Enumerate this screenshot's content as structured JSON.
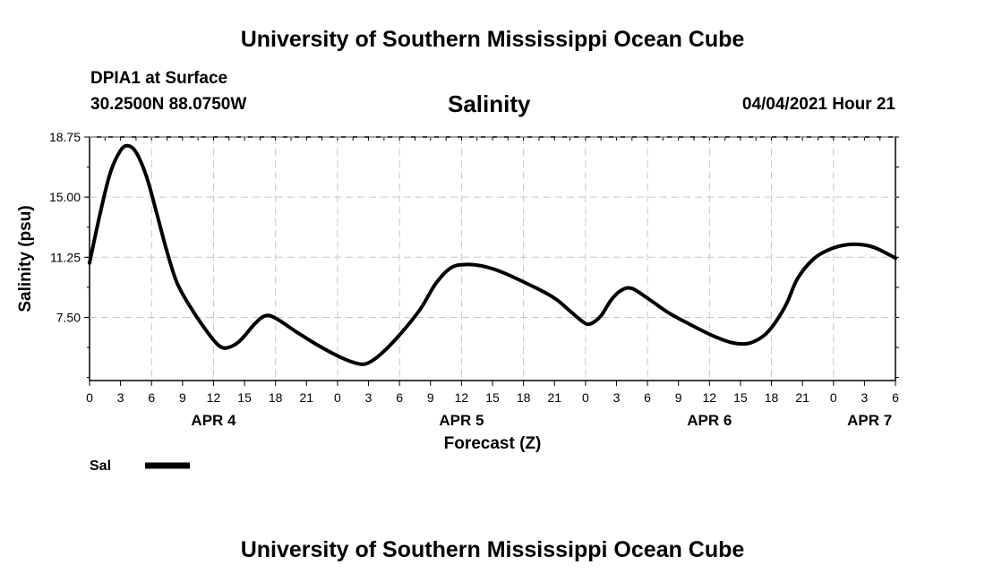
{
  "page": {
    "title_top": "University of Southern Mississippi Ocean Cube",
    "title_bottom": "University of Southern Mississippi Ocean Cube",
    "station": "DPIA1 at Surface",
    "coords": "30.2500N  88.0750W",
    "chart_title": "Salinity",
    "datetime": "04/04/2021 Hour 21"
  },
  "chart_data": {
    "type": "line",
    "title": "Salinity",
    "xlabel": "Forecast (Z)",
    "ylabel": "Salinity (psu)",
    "ylim": [
      3.56,
      18.75
    ],
    "yticks": [
      7.5,
      11.25,
      15.0,
      18.75
    ],
    "ytick_labels": [
      "7.50",
      "11.25",
      "15.00",
      "18.75"
    ],
    "xlim_hours": [
      0,
      78
    ],
    "xtick_hours": [
      0,
      3,
      6,
      9,
      12,
      15,
      18,
      21,
      24,
      27,
      30,
      33,
      36,
      39,
      42,
      45,
      48,
      51,
      54,
      57,
      60,
      63,
      66,
      69,
      72,
      75,
      78
    ],
    "xtick_labels": [
      "0",
      "3",
      "6",
      "9",
      "12",
      "15",
      "18",
      "21",
      "0",
      "3",
      "6",
      "9",
      "12",
      "15",
      "18",
      "21",
      "0",
      "3",
      "6",
      "9",
      "12",
      "15",
      "18",
      "21",
      "0",
      "3",
      "6"
    ],
    "date_labels": [
      {
        "hour": 12,
        "label": "APR 4"
      },
      {
        "hour": 36,
        "label": "APR 5"
      },
      {
        "hour": 60,
        "label": "APR 6"
      },
      {
        "hour": 75.5,
        "label": "APR 7"
      }
    ],
    "grid": true,
    "series": [
      {
        "name": "Sal",
        "color": "#000000",
        "x": [
          0,
          1,
          2,
          3,
          3.7,
          4.5,
          5.5,
          6.5,
          7.5,
          8.5,
          10,
          11.5,
          12.5,
          13.3,
          14.5,
          16,
          17,
          18,
          20,
          22,
          24,
          25.5,
          26.7,
          28,
          30,
          32,
          33.5,
          35,
          36.5,
          38,
          40,
          43,
          45,
          46.5,
          47.8,
          48.5,
          49.5,
          50.5,
          51.5,
          52.5,
          54,
          56,
          58,
          60,
          62,
          63.5,
          64.5,
          65.5,
          66.5,
          67.5,
          68.5,
          70,
          71.5,
          73,
          74.5,
          76,
          78
        ],
        "values": [
          10.9,
          13.9,
          16.5,
          17.9,
          18.2,
          17.8,
          16.3,
          14.0,
          11.6,
          9.6,
          7.9,
          6.5,
          5.75,
          5.6,
          6.0,
          7.1,
          7.6,
          7.45,
          6.6,
          5.8,
          5.1,
          4.7,
          4.6,
          5.1,
          6.4,
          8.0,
          9.6,
          10.6,
          10.8,
          10.7,
          10.3,
          9.4,
          8.7,
          7.9,
          7.2,
          7.1,
          7.6,
          8.6,
          9.2,
          9.3,
          8.7,
          7.8,
          7.1,
          6.45,
          5.95,
          5.85,
          6.05,
          6.5,
          7.3,
          8.4,
          9.9,
          11.1,
          11.7,
          12.0,
          12.05,
          11.85,
          11.2
        ]
      }
    ],
    "legend": {
      "label": "Sal",
      "placement": "bottom-left"
    }
  }
}
